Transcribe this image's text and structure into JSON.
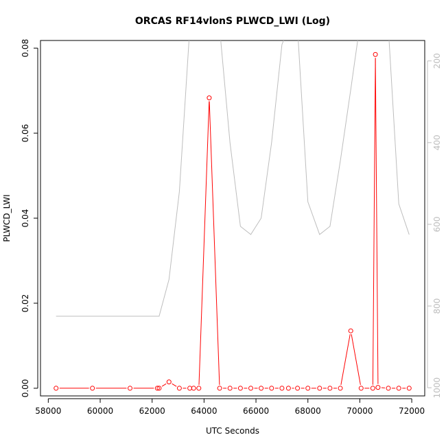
{
  "chart_data": {
    "type": "line",
    "title": "ORCAS RF14vlonS PLWCD_LWI (Log)",
    "xlabel": "UTC Seconds",
    "ylabel": "PLWCD_LWI",
    "xlim": [
      57700,
      72500
    ],
    "ylim": [
      -0.0018,
      0.0818
    ],
    "x_ticks": [
      58000,
      60000,
      62000,
      64000,
      66000,
      68000,
      70000,
      72000
    ],
    "x_tick_labels": [
      "58000",
      "60000",
      "62000",
      "64000",
      "66000",
      "68000",
      "70000",
      "72000"
    ],
    "y_ticks": [
      0.0,
      0.02,
      0.04,
      0.06,
      0.08
    ],
    "y_tick_labels": [
      "0.00",
      "0.02",
      "0.04",
      "0.06",
      "0.08"
    ],
    "y2_axis": {
      "ylim": [
        1020,
        150
      ],
      "ticks": [
        200,
        400,
        600,
        800,
        1000
      ],
      "tick_labels": [
        "200",
        "400",
        "600",
        "800",
        "1000"
      ],
      "color": "#bdbdbd"
    },
    "series": [
      {
        "axis": "left",
        "color": "#ff0000",
        "marker": "open-circle",
        "x": [
          58300,
          59700,
          61150,
          62200,
          62270,
          62650,
          63050,
          63450,
          63600,
          63800,
          64200,
          64600,
          65000,
          65400,
          65800,
          66200,
          66600,
          67000,
          67250,
          67600,
          68000,
          68450,
          68850,
          69250,
          69650,
          70050,
          70500,
          70600,
          70700,
          71100,
          71500,
          71900
        ],
        "values": [
          0.0,
          0.0,
          0.0,
          0.0,
          0.0,
          0.0015,
          0.0,
          0.0,
          0.0,
          0.0,
          0.0683,
          0.0,
          0.0,
          0.0,
          0.0,
          0.0,
          0.0,
          0.0,
          0.0,
          0.0,
          0.0,
          0.0,
          0.0,
          0.0,
          0.0135,
          0.0,
          0.0,
          0.0785,
          0.0002,
          0.0,
          0.0,
          0.0
        ]
      },
      {
        "axis": "right",
        "color": "#bdbdbd",
        "marker": "none",
        "x": [
          58300,
          59700,
          61150,
          62200,
          62270,
          62650,
          63050,
          63450,
          63800,
          64200,
          64600,
          65000,
          65400,
          65800,
          66200,
          66600,
          67000,
          67250,
          67600,
          68000,
          68450,
          68850,
          69250,
          69650,
          70050,
          70500,
          70600,
          70700,
          71100,
          71500,
          71900
        ],
        "values": [
          825,
          825,
          825,
          825,
          825,
          735,
          520,
          120,
          120,
          120,
          120,
          400,
          605,
          625,
          585,
          400,
          160,
          120,
          120,
          545,
          625,
          605,
          445,
          270,
          90,
          90,
          120,
          120,
          120,
          550,
          625
        ]
      }
    ]
  }
}
